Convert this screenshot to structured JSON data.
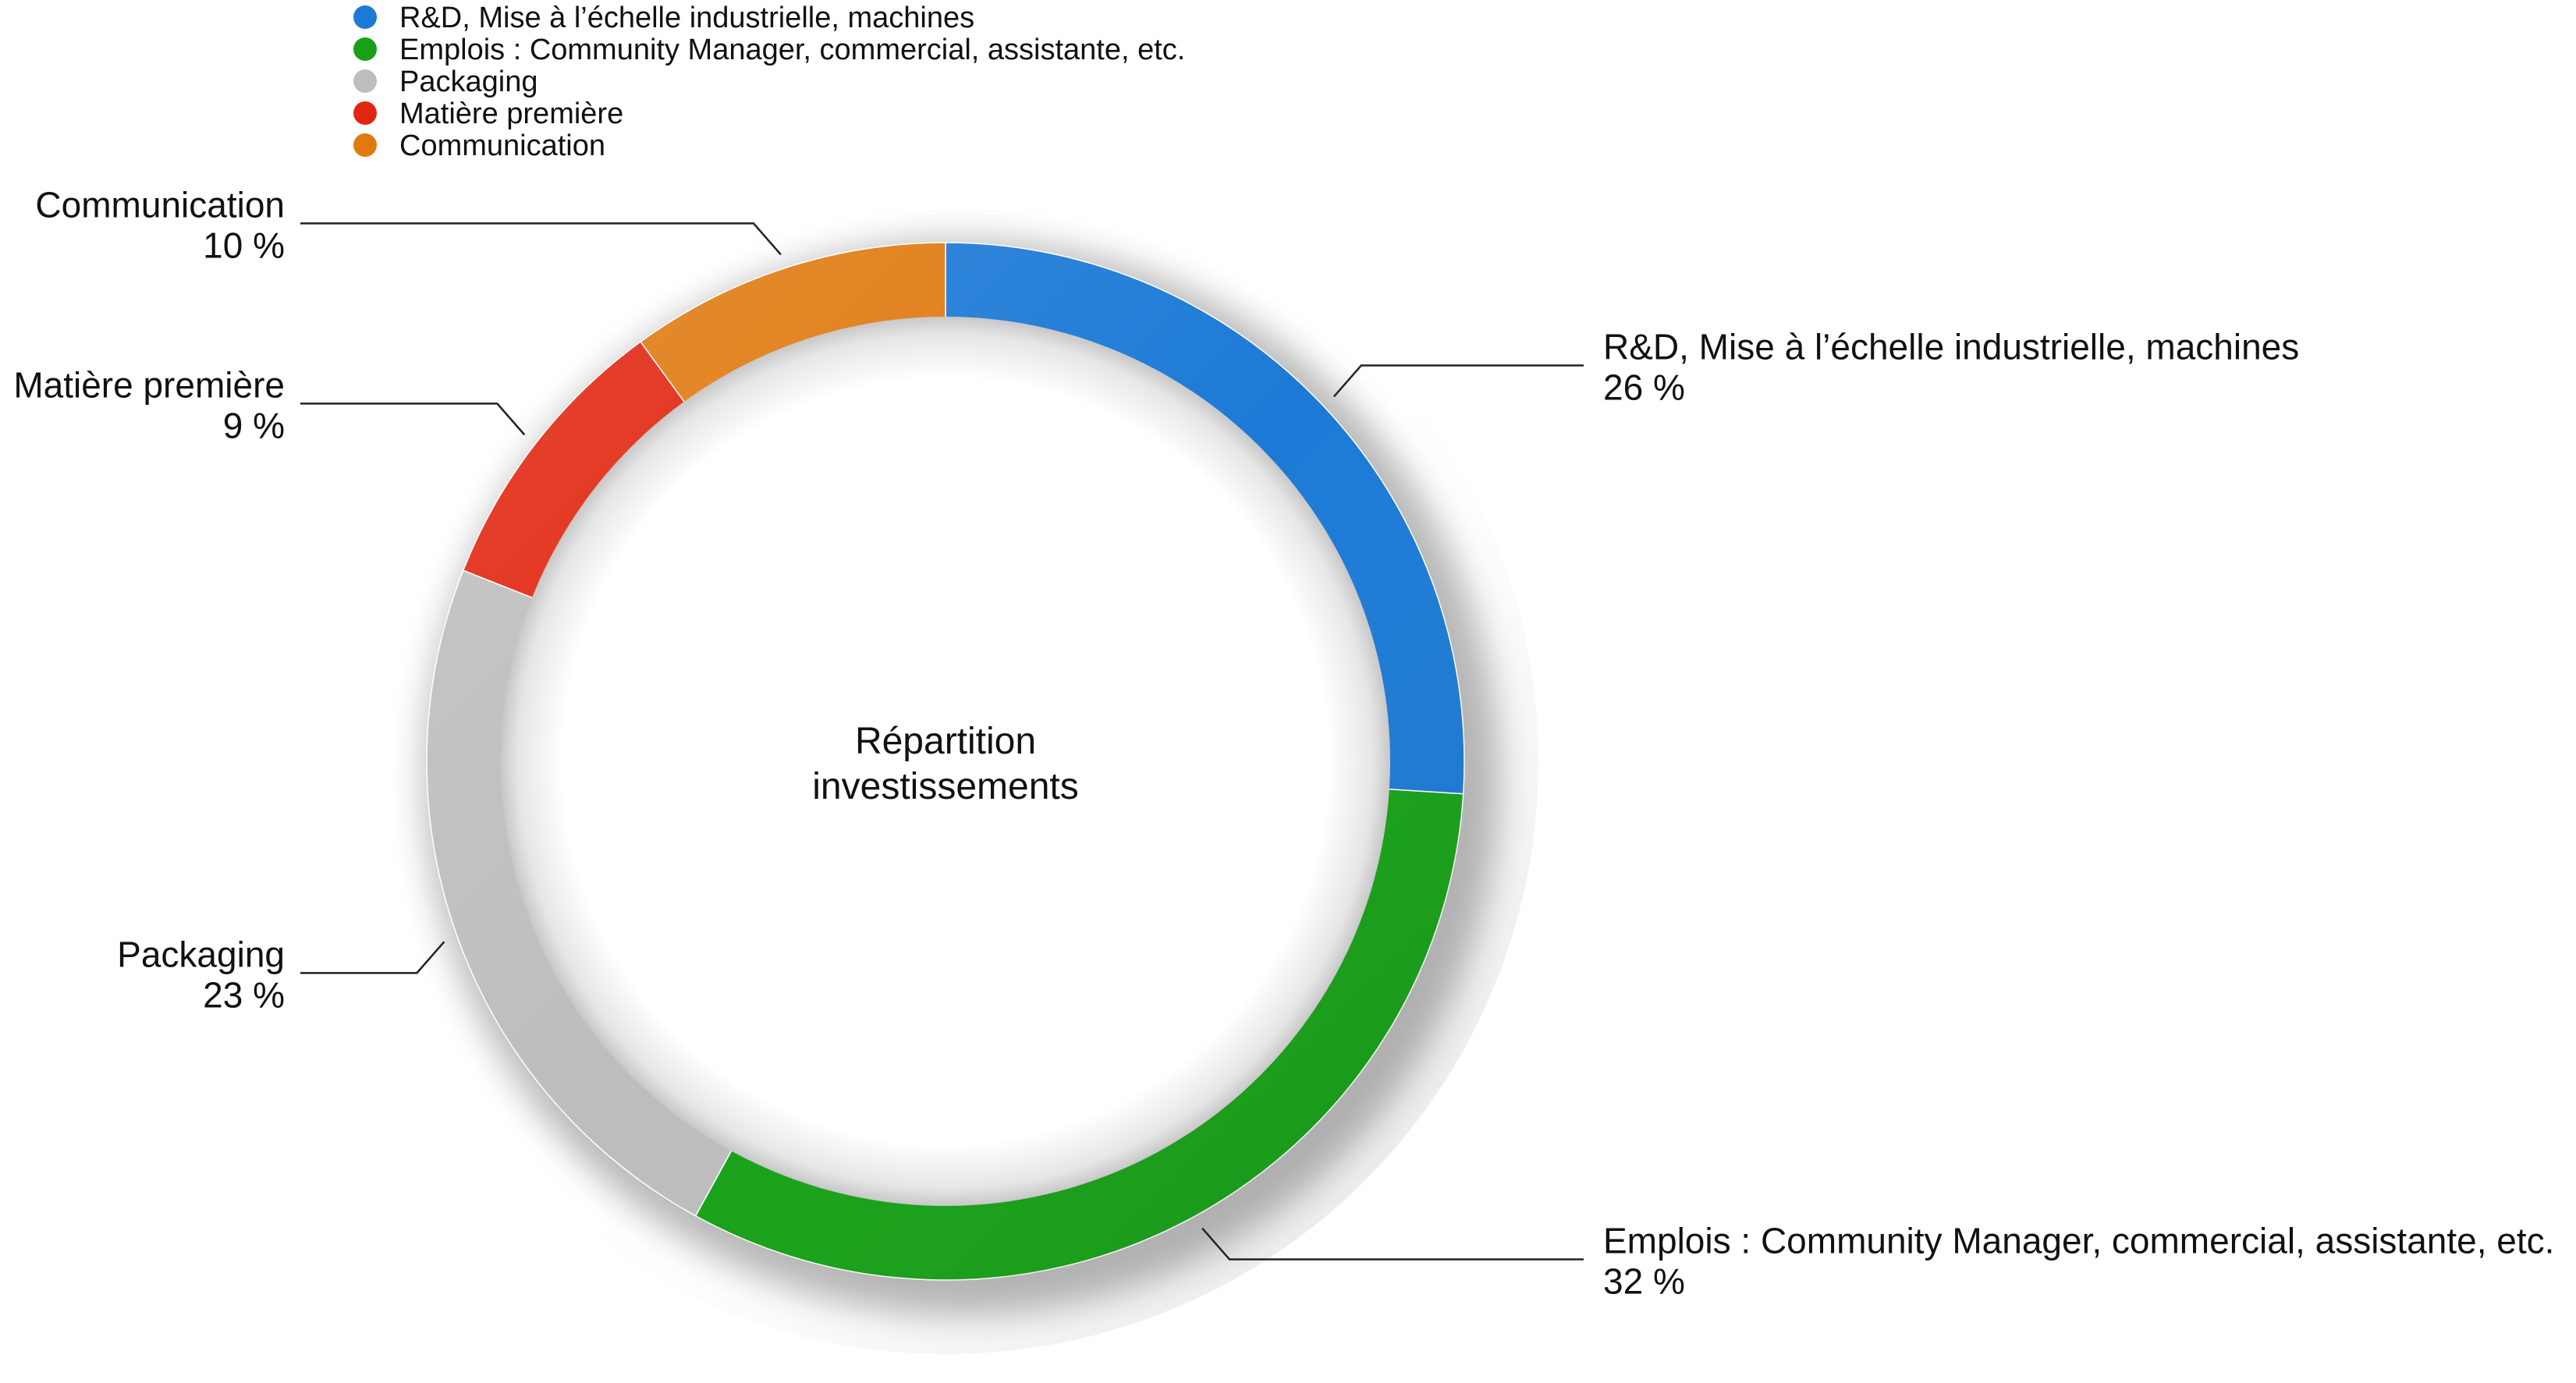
{
  "chart_data": {
    "type": "pie",
    "variant": "donut",
    "center_label": [
      "Répartition",
      "investissements"
    ],
    "legend_position": "top-left",
    "series": [
      {
        "label": "R&D, Mise à l’échelle industrielle, machines",
        "value": 26,
        "value_label": "26 %",
        "color": "#1c7ad6"
      },
      {
        "label": "Emplois : Community Manager, commercial, assistante, etc.",
        "value": 32,
        "value_label": "32 %",
        "color": "#17a117"
      },
      {
        "label": "Packaging",
        "value": 23,
        "value_label": "23 %",
        "color": "#bdbdbd"
      },
      {
        "label": "Matière première",
        "value": 9,
        "value_label": "9 %",
        "color": "#e1260f"
      },
      {
        "label": "Communication",
        "value": 10,
        "value_label": "10 %",
        "color": "#e07a10"
      }
    ]
  }
}
